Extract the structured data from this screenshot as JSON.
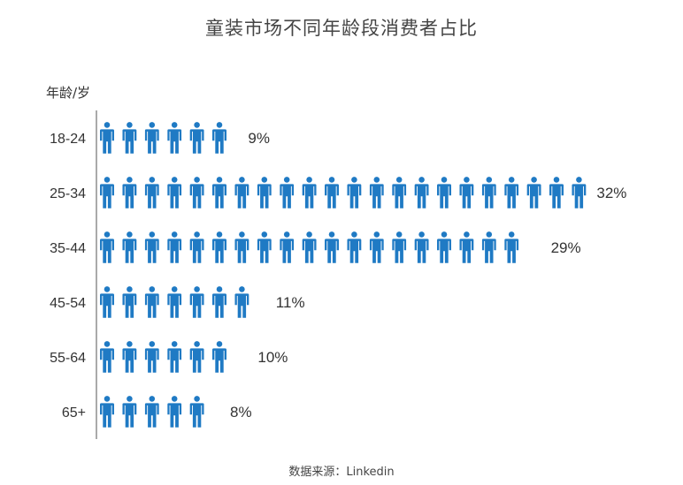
{
  "title": "童装市场不同年龄段消费者占比",
  "y_axis_label": "年龄/岁",
  "source": "数据来源：Linkedin",
  "colors": {
    "icon": "#1F7AC4",
    "axis": "#555555"
  },
  "icon_name": "person-icon",
  "chart_data": {
    "type": "bar",
    "style": "pictograph",
    "orientation": "horizontal",
    "categories": [
      "18-24",
      "25-34",
      "35-44",
      "45-54",
      "55-64",
      "65+"
    ],
    "values": [
      9,
      32,
      29,
      11,
      10,
      8
    ],
    "value_labels": [
      "9%",
      "32%",
      "29%",
      "11%",
      "10%",
      "8%"
    ],
    "unit": "%",
    "ylabel": "年龄/岁",
    "title": "童装市场不同年龄段消费者占比"
  }
}
